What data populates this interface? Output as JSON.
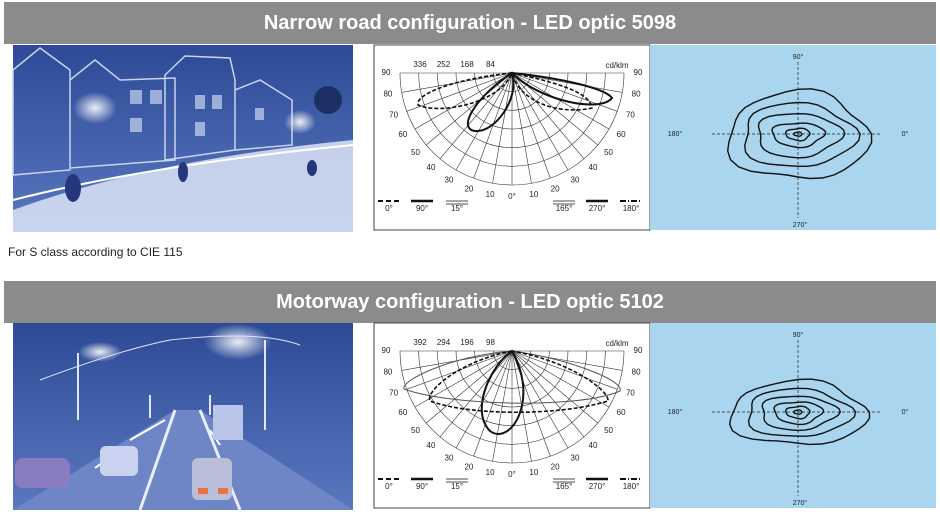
{
  "note": "For S class according to CIE 115",
  "sections": [
    {
      "title": "Narrow road configuration - LED optic 5098",
      "polar": {
        "scale": [
          "336",
          "252",
          "168",
          "84"
        ],
        "unit": "cd/klm",
        "angles_left": [
          "90",
          "80",
          "70",
          "60",
          "50",
          "40",
          "30",
          "20",
          "10"
        ],
        "angles_right": [
          "90",
          "80",
          "70",
          "60",
          "50",
          "40",
          "30",
          "20",
          "10"
        ],
        "center": "0°",
        "legend": [
          "0°",
          "90°",
          "15°",
          "165°",
          "270°",
          "180°"
        ]
      },
      "isolux": {
        "top": "90°",
        "left": "180°",
        "right": "0°",
        "bottom": "270°"
      }
    },
    {
      "title": "Motorway configuration - LED optic 5102",
      "polar": {
        "scale": [
          "392",
          "294",
          "196",
          "98"
        ],
        "unit": "cd/klm",
        "angles_left": [
          "90",
          "80",
          "70",
          "60",
          "50",
          "40",
          "30",
          "20",
          "10"
        ],
        "angles_right": [
          "90",
          "80",
          "70",
          "60",
          "50",
          "40",
          "30",
          "20",
          "10"
        ],
        "center": "0°",
        "legend": [
          "0°",
          "90°",
          "15°",
          "165°",
          "270°",
          "180°"
        ]
      },
      "isolux": {
        "top": "90°",
        "left": "180°",
        "right": "0°",
        "bottom": "270°"
      }
    }
  ]
}
